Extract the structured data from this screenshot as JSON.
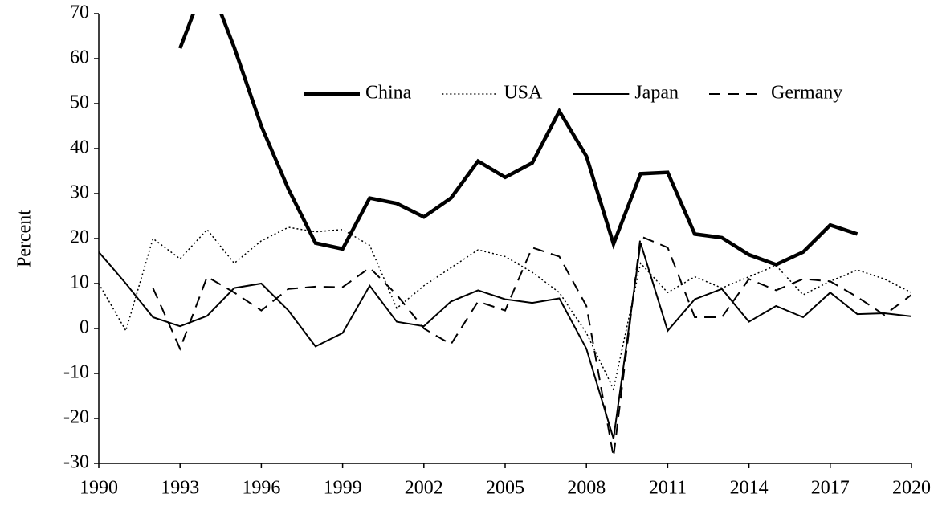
{
  "chart_data": {
    "type": "line",
    "y_label": "Percent",
    "x": [
      1990,
      1991,
      1992,
      1993,
      1994,
      1995,
      1996,
      1997,
      1998,
      1999,
      2000,
      2001,
      2002,
      2003,
      2004,
      2005,
      2006,
      2007,
      2008,
      2009,
      2010,
      2011,
      2012,
      2013,
      2014,
      2015,
      2016,
      2017,
      2018,
      2019,
      2020
    ],
    "series": [
      {
        "name": "China",
        "color": "#000000",
        "width": 4.5,
        "dash": "solid",
        "values": [
          null,
          null,
          null,
          62.3,
          78,
          62.5,
          45,
          31,
          19,
          17.7,
          29,
          27.8,
          24.8,
          29,
          37.2,
          33.6,
          36.8,
          48.3,
          38.3,
          18.8,
          34.4,
          34.7,
          21,
          20.2,
          16.4,
          14.2,
          17,
          23,
          21,
          null,
          null
        ]
      },
      {
        "name": "USA",
        "color": "#000000",
        "width": 1.5,
        "dash": "dotted",
        "values": [
          10,
          -0.5,
          20,
          15.5,
          22,
          14.5,
          19.5,
          22.5,
          21.5,
          22,
          18.5,
          4.5,
          9.5,
          13.5,
          17.5,
          16,
          12.5,
          8,
          -1,
          -13.5,
          14.5,
          8,
          11.5,
          9,
          11.5,
          14,
          7.5,
          10.5,
          13,
          11,
          8
        ]
      },
      {
        "name": "Japan",
        "color": "#000000",
        "width": 2,
        "dash": "solid",
        "values": [
          17,
          10,
          2.5,
          0.5,
          2.8,
          9,
          10,
          4,
          -4,
          -1,
          9.5,
          1.5,
          0.5,
          6,
          8.5,
          6.5,
          5.7,
          6.7,
          -4.5,
          -24.5,
          19,
          -0.5,
          6.5,
          8.8,
          1.5,
          5,
          2.5,
          8,
          3.2,
          3.4,
          2.7
        ]
      },
      {
        "name": "Germany",
        "color": "#000000",
        "width": 2,
        "dash": "dashed",
        "values": [
          null,
          null,
          9,
          -4.5,
          11.5,
          8,
          4,
          8.8,
          9.3,
          9.2,
          13.5,
          7.5,
          0,
          -3.5,
          6,
          4,
          18,
          16,
          5,
          -28.5,
          20.5,
          18,
          2.5,
          2.5,
          11,
          8.5,
          11,
          10.5,
          7,
          3,
          7.5
        ]
      }
    ],
    "xlim": [
      1990,
      2020
    ],
    "xticks": [
      1990,
      1993,
      1996,
      1999,
      2002,
      2005,
      2008,
      2011,
      2014,
      2017,
      2020
    ],
    "ylim": [
      -30,
      70
    ],
    "yticks": [
      -30,
      -20,
      -10,
      0,
      10,
      20,
      30,
      40,
      50,
      60,
      70
    ],
    "grid": false,
    "legend": "top"
  }
}
